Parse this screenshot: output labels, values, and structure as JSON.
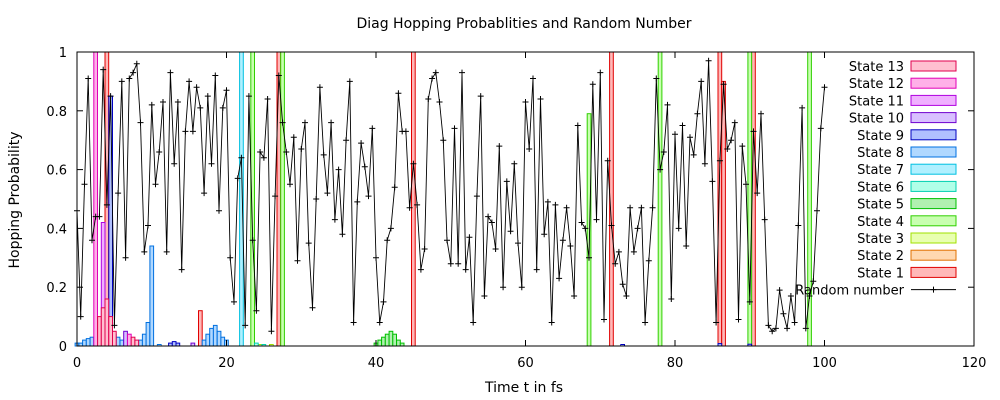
{
  "chart_data": {
    "type": "bar",
    "title": "Diag Hopping Probablities and Random Number",
    "xlabel": "Time t in fs",
    "ylabel": "Hopping Probability",
    "xlim": [
      0,
      120
    ],
    "ylim": [
      0,
      1
    ],
    "xticks": [
      0,
      20,
      40,
      60,
      80,
      100,
      120
    ],
    "yticks": [
      0,
      0.2,
      0.4,
      0.6,
      0.8,
      1
    ],
    "xtick_labels": [
      "0",
      "20",
      "40",
      "60",
      "80",
      "100",
      "120"
    ],
    "ytick_labels": [
      "0",
      "0.2",
      "0.4",
      "0.6",
      "0.8",
      "1"
    ],
    "legend_position": "top-right",
    "bar_width": 0.5,
    "series": [
      {
        "name": "State 13",
        "stroke": "#e0004e",
        "fill": "#ffc0d0",
        "bars": [
          [
            3,
            0.1
          ],
          [
            3.5,
            0.13
          ],
          [
            4,
            0.16
          ],
          [
            4.5,
            0.1
          ],
          [
            5,
            0.05
          ],
          [
            7.5,
            0.03
          ],
          [
            8,
            0.02
          ]
        ]
      },
      {
        "name": "State 12",
        "stroke": "#e000b8",
        "fill": "#ffb0e8",
        "bars": [
          [
            2.5,
            1.0
          ],
          [
            7,
            0.04
          ]
        ]
      },
      {
        "name": "State 11",
        "stroke": "#b000e0",
        "fill": "#f0b0ff",
        "bars": [
          [
            3.5,
            0.42
          ]
        ]
      },
      {
        "name": "State 10",
        "stroke": "#7000d0",
        "fill": "#d8c0ff",
        "bars": [
          [
            6.5,
            0.05
          ],
          [
            15.5,
            0.01
          ]
        ]
      },
      {
        "name": "State 9",
        "stroke": "#0000c0",
        "fill": "#b0c0ff",
        "bars": [
          [
            4.5,
            0.85
          ],
          [
            12.5,
            0.01
          ],
          [
            13,
            0.015
          ],
          [
            13.5,
            0.01
          ],
          [
            73,
            0.005
          ],
          [
            86,
            0.008
          ],
          [
            90,
            0.006
          ]
        ]
      },
      {
        "name": "State 8",
        "stroke": "#0070e0",
        "fill": "#b0d8ff",
        "bars": [
          [
            0,
            0.01
          ],
          [
            0.5,
            0.01
          ],
          [
            1,
            0.02
          ],
          [
            1.5,
            0.025
          ],
          [
            2,
            0.03
          ],
          [
            2.5,
            0.03
          ],
          [
            4,
            0.02
          ],
          [
            5,
            0.04
          ],
          [
            5.5,
            0.03
          ],
          [
            6,
            0.02
          ],
          [
            8.5,
            0.02
          ],
          [
            9,
            0.04
          ],
          [
            9.5,
            0.08
          ],
          [
            10,
            0.34
          ],
          [
            11,
            0.005
          ],
          [
            17,
            0.02
          ],
          [
            17.5,
            0.04
          ],
          [
            18,
            0.06
          ],
          [
            18.5,
            0.07
          ],
          [
            19,
            0.05
          ],
          [
            19.5,
            0.03
          ],
          [
            20,
            0.02
          ]
        ]
      },
      {
        "name": "State 7",
        "stroke": "#00c0e0",
        "fill": "#b0f0ff",
        "bars": [
          [
            22,
            1.0
          ]
        ]
      },
      {
        "name": "State 6",
        "stroke": "#00d0b0",
        "fill": "#b0ffe8",
        "bars": [
          [
            24,
            0.01
          ],
          [
            25,
            0.005
          ]
        ]
      },
      {
        "name": "State 5",
        "stroke": "#00c000",
        "fill": "#b0f0b0",
        "bars": [
          [
            40,
            0.01
          ],
          [
            40.5,
            0.02
          ],
          [
            41,
            0.03
          ],
          [
            41.5,
            0.04
          ],
          [
            42,
            0.05
          ],
          [
            42.5,
            0.04
          ],
          [
            43,
            0.02
          ],
          [
            43.5,
            0.01
          ]
        ]
      },
      {
        "name": "State 4",
        "stroke": "#30d000",
        "fill": "#c8ffb0",
        "bars": [
          [
            23.5,
            1.0
          ],
          [
            27.5,
            1.0
          ],
          [
            68.5,
            0.79
          ],
          [
            78,
            1.0
          ],
          [
            90,
            1.0
          ],
          [
            98,
            1.0
          ]
        ]
      },
      {
        "name": "State 3",
        "stroke": "#a0e000",
        "fill": "#e8ffb0",
        "bars": [
          [
            24.5,
            0.005
          ],
          [
            26,
            0.005
          ]
        ]
      },
      {
        "name": "State 2",
        "stroke": "#e07000",
        "fill": "#ffd8b0",
        "bars": [
          [
            0.5,
            0.005
          ],
          [
            1,
            0.005
          ]
        ]
      },
      {
        "name": "State 1",
        "stroke": "#e00000",
        "fill": "#ffb8b8",
        "bars": [
          [
            4,
            1.0
          ],
          [
            16.5,
            0.12
          ],
          [
            27,
            1.0
          ],
          [
            45,
            1.0
          ],
          [
            71.5,
            1.0
          ],
          [
            86,
            1.0
          ],
          [
            86.5,
            0.9
          ],
          [
            90.5,
            1.0
          ]
        ]
      },
      {
        "name": "Random number",
        "type": "line",
        "stroke": "#000000",
        "x": [
          0,
          0.5,
          1,
          1.5,
          2,
          2.5,
          3,
          3.5,
          4,
          4.5,
          5,
          5.5,
          6,
          6.5,
          7,
          7.5,
          8,
          8.5,
          9,
          9.5,
          10,
          10.5,
          11,
          11.5,
          12,
          12.5,
          13,
          13.5,
          14,
          14.5,
          15,
          15.5,
          16,
          16.5,
          17,
          17.5,
          18,
          18.5,
          19,
          19.5,
          20,
          20.5,
          21,
          21.5,
          22,
          22.5,
          23,
          23.5,
          24,
          24.5,
          25,
          25.5,
          26,
          26.5,
          27,
          27.5,
          28,
          28.5,
          29,
          29.5,
          30,
          30.5,
          31,
          31.5,
          32,
          32.5,
          33,
          33.5,
          34,
          34.5,
          35,
          35.5,
          36,
          36.5,
          37,
          37.5,
          38,
          38.5,
          39,
          39.5,
          40,
          40.5,
          41,
          41.5,
          42,
          42.5,
          43,
          43.5,
          44,
          44.5,
          45,
          45.5,
          46,
          46.5,
          47,
          47.5,
          48,
          48.5,
          49,
          49.5,
          50,
          50.5,
          51,
          51.5,
          52,
          52.5,
          53,
          53.5,
          54,
          54.5,
          55,
          55.5,
          56,
          56.5,
          57,
          57.5,
          58,
          58.5,
          59,
          59.5,
          60,
          60.5,
          61,
          61.5,
          62,
          62.5,
          63,
          63.5,
          64,
          64.5,
          65,
          65.5,
          66,
          66.5,
          67,
          67.5,
          68,
          68.5,
          69,
          69.5,
          70,
          70.5,
          71,
          71.5,
          72,
          72.5,
          73,
          73.5,
          74,
          74.5,
          75,
          75.5,
          76,
          76.5,
          77,
          77.5,
          78,
          78.5,
          79,
          79.5,
          80,
          80.5,
          81,
          81.5,
          82,
          82.5,
          83,
          83.5,
          84,
          84.5,
          85,
          85.5,
          86,
          86.5,
          87,
          87.5,
          88,
          88.5,
          89,
          89.5,
          90,
          90.5,
          91,
          91.5,
          92,
          92.5,
          93,
          93.5,
          94,
          94.5,
          95,
          95.5,
          96,
          96.5,
          97,
          97.5,
          98,
          98.5,
          99,
          99.5,
          100
        ],
        "y": [
          0.46,
          0.1,
          0.55,
          0.91,
          0.36,
          0.44,
          0.44,
          0.94,
          0.48,
          0.85,
          0.07,
          0.52,
          0.9,
          0.3,
          0.91,
          0.93,
          0.96,
          0.76,
          0.32,
          0.41,
          0.82,
          0.55,
          0.66,
          0.83,
          0.32,
          0.93,
          0.62,
          0.83,
          0.26,
          0.73,
          0.9,
          0.73,
          0.88,
          0.81,
          0.52,
          0.85,
          0.62,
          0.92,
          0.46,
          0.81,
          0.87,
          0.3,
          0.15,
          0.57,
          0.64,
          0.07,
          0.85,
          0.36,
          0.12,
          0.66,
          0.64,
          0.84,
          0.05,
          0.51,
          0.92,
          0.76,
          0.66,
          0.55,
          0.71,
          0.29,
          0.67,
          0.76,
          0.35,
          0.13,
          0.5,
          0.88,
          0.65,
          0.52,
          0.76,
          0.43,
          0.6,
          0.38,
          0.7,
          0.9,
          0.08,
          0.49,
          0.69,
          0.61,
          0.51,
          0.74,
          0.3,
          0.08,
          0.15,
          0.36,
          0.4,
          0.54,
          0.86,
          0.73,
          0.73,
          0.47,
          0.62,
          0.48,
          0.26,
          0.33,
          0.84,
          0.91,
          0.93,
          0.83,
          0.7,
          0.36,
          0.28,
          0.74,
          0.28,
          0.93,
          0.26,
          0.37,
          0.08,
          0.51,
          0.85,
          0.17,
          0.44,
          0.42,
          0.33,
          0.68,
          0.2,
          0.56,
          0.39,
          0.62,
          0.35,
          0.2,
          0.83,
          0.67,
          0.91,
          0.26,
          0.84,
          0.38,
          0.49,
          0.08,
          0.48,
          0.23,
          0.36,
          0.47,
          0.34,
          0.17,
          0.75,
          0.42,
          0.4,
          0.3,
          0.89,
          0.43,
          0.93,
          0.09,
          0.63,
          0.41,
          0.28,
          0.32,
          0.21,
          0.17,
          0.47,
          0.32,
          0.4,
          0.47,
          0.08,
          0.29,
          0.47,
          0.91,
          0.6,
          0.66,
          0.82,
          0.16,
          0.72,
          0.4,
          0.75,
          0.34,
          0.71,
          0.65,
          0.79,
          0.9,
          0.62,
          0.97,
          0.56,
          0.08,
          0.63,
          0.89,
          0.67,
          0.7,
          0.76,
          0.09,
          0.68,
          0.55,
          0.15,
          0.73,
          0.52,
          0.79,
          0.43,
          0.07,
          0.05,
          0.06,
          0.19,
          0.11,
          0.06,
          0.17,
          0.08,
          0.41,
          0.81,
          0.06,
          0.17,
          0.22,
          0.46,
          0.74,
          0.88
        ]
      }
    ]
  }
}
